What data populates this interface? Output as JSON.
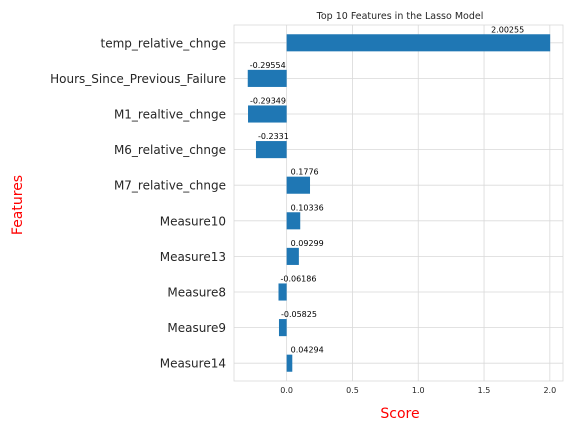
{
  "chart_data": {
    "type": "bar",
    "orientation": "horizontal",
    "title": "Top 10 Features in the Lasso Model",
    "xlabel": "Score",
    "ylabel": "Features",
    "categories": [
      "temp_relative_chnge",
      "Hours_Since_Previous_Failure",
      "M1_realtive_chnge",
      "M6_relative_chnge",
      "M7_relative_chnge",
      "Measure10",
      "Measure13",
      "Measure8",
      "Measure9",
      "Measure14"
    ],
    "values": [
      2.00255,
      -0.29554,
      -0.29349,
      -0.2331,
      0.1776,
      0.10336,
      0.09299,
      -0.06186,
      -0.05825,
      0.04294
    ],
    "value_labels": [
      "2.00255",
      "-0.29554",
      "-0.29349",
      "-0.2331",
      "0.1776",
      "0.10336",
      "0.09299",
      "-0.06186",
      "-0.05825",
      "0.04294"
    ],
    "xlim": [
      -0.4,
      2.1
    ],
    "xticks": [
      0.0,
      0.5,
      1.0,
      1.5,
      2.0
    ],
    "xtick_labels": [
      "0.0",
      "0.5",
      "1.0",
      "1.5",
      "2.0"
    ],
    "grid": true,
    "bar_color": "#1f77b4",
    "label_color": "#ff0000"
  }
}
